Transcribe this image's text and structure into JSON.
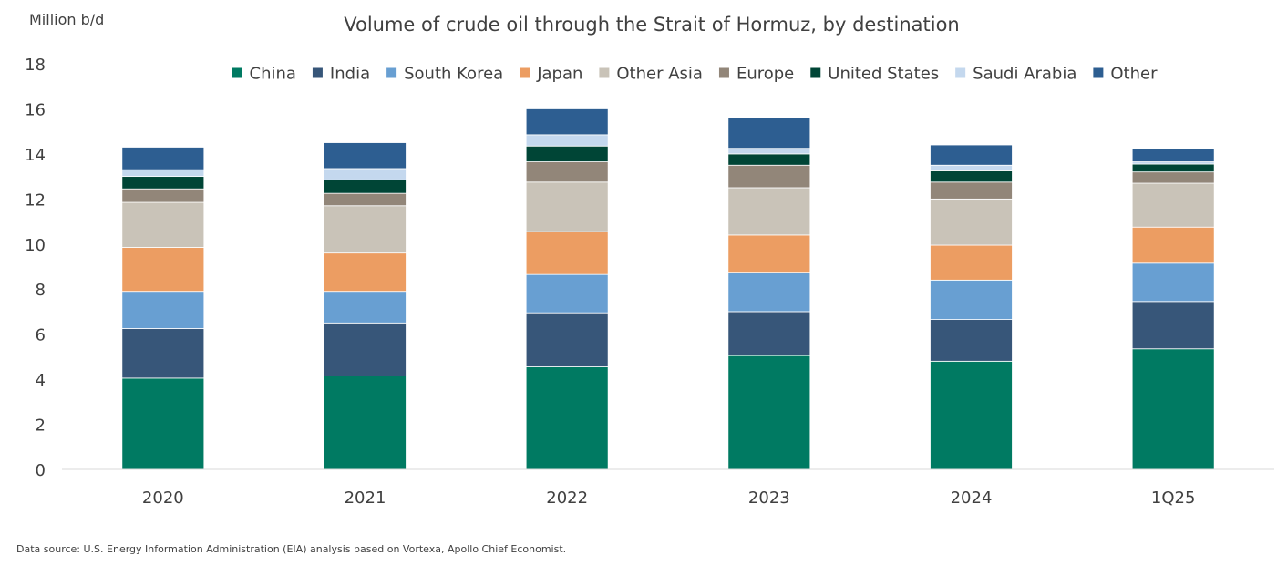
{
  "chart_data": {
    "type": "bar",
    "stacked": true,
    "title": "Volume of crude oil through the Strait of Hormuz, by destination",
    "unit_label": "Million b/d",
    "categories": [
      "2020",
      "2021",
      "2022",
      "2023",
      "2024",
      "1Q25"
    ],
    "ylim": [
      0,
      18
    ],
    "yticks": [
      "0",
      "2",
      "4",
      "6",
      "8",
      "10",
      "12",
      "14",
      "16",
      "18"
    ],
    "grid": false,
    "legend_position": "top",
    "series": [
      {
        "name": "China",
        "color": "#007A62",
        "values": [
          4.05,
          4.15,
          4.55,
          5.05,
          4.8,
          5.35
        ]
      },
      {
        "name": "India",
        "color": "#375679",
        "values": [
          2.2,
          2.35,
          2.4,
          1.95,
          1.85,
          2.1
        ]
      },
      {
        "name": "South Korea",
        "color": "#689FD2",
        "values": [
          1.65,
          1.4,
          1.7,
          1.75,
          1.75,
          1.7
        ]
      },
      {
        "name": "Japan",
        "color": "#EC9D62",
        "values": [
          1.95,
          1.7,
          1.9,
          1.65,
          1.55,
          1.6
        ]
      },
      {
        "name": "Other Asia",
        "color": "#C9C3B8",
        "values": [
          2.0,
          2.1,
          2.2,
          2.1,
          2.05,
          1.95
        ]
      },
      {
        "name": "Europe",
        "color": "#928679",
        "values": [
          0.6,
          0.55,
          0.9,
          1.0,
          0.75,
          0.5
        ]
      },
      {
        "name": "United States",
        "color": "#004536",
        "values": [
          0.55,
          0.6,
          0.7,
          0.5,
          0.5,
          0.35
        ]
      },
      {
        "name": "Saudi Arabia",
        "color": "#C4D8EE",
        "values": [
          0.3,
          0.5,
          0.5,
          0.25,
          0.25,
          0.1
        ]
      },
      {
        "name": "Other",
        "color": "#2D5E91",
        "values": [
          1.0,
          1.15,
          1.15,
          1.35,
          0.9,
          0.6
        ]
      }
    ]
  },
  "source": "Data source: U.S. Energy Information Administration (EIA) analysis based on Vortexa, Apollo Chief Economist."
}
